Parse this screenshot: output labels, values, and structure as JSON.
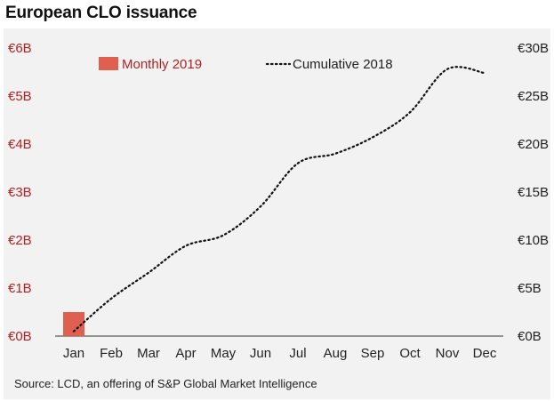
{
  "title": "European CLO issuance",
  "source": "Source: LCD, an offering of S&P Global Market Intelligence",
  "colors": {
    "monthly": "#e06050",
    "left_axis": "#b22222",
    "cumulative": "#111111",
    "panel": "#f2f2f2"
  },
  "chart_data": {
    "type": "bar",
    "categories": [
      "Jan",
      "Feb",
      "Mar",
      "Apr",
      "May",
      "Jun",
      "Jul",
      "Aug",
      "Sep",
      "Oct",
      "Nov",
      "Dec"
    ],
    "series": [
      {
        "name": "Monthly 2019",
        "type": "bar",
        "axis": "left",
        "values": [
          0.5,
          null,
          null,
          null,
          null,
          null,
          null,
          null,
          null,
          null,
          null,
          null
        ]
      },
      {
        "name": "Cumulative 2018",
        "type": "line",
        "style": "dotted",
        "axis": "right",
        "values": [
          0.5,
          3.9,
          6.6,
          9.4,
          10.5,
          13.5,
          18.0,
          19.0,
          20.7,
          23.3,
          27.8,
          27.4
        ]
      }
    ],
    "y_left": {
      "ticks": [
        "€0B",
        "€1B",
        "€2B",
        "€3B",
        "€4B",
        "€5B",
        "€6B"
      ],
      "ylim": [
        0,
        6
      ]
    },
    "y_right": {
      "ticks": [
        "€0B",
        "€5B",
        "€10B",
        "€15B",
        "€20B",
        "€25B",
        "€30B"
      ],
      "ylim": [
        0,
        30
      ]
    },
    "grid": false,
    "legend": {
      "position": "top-left",
      "items": [
        "Monthly 2019",
        "Cumulative 2018"
      ]
    }
  }
}
